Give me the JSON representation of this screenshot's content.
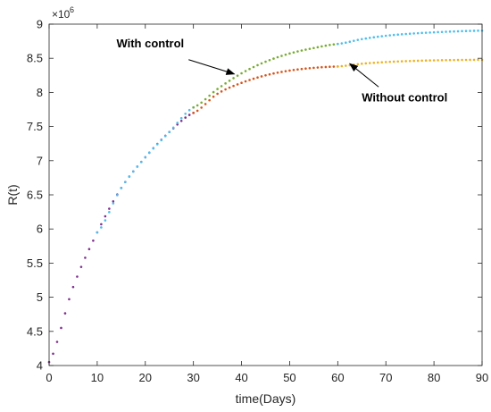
{
  "chart_data": {
    "type": "scatter",
    "xlabel": "time(Days)",
    "ylabel": "R(t)",
    "xlim": [
      0,
      90
    ],
    "ylim": [
      4000000,
      9000000
    ],
    "xticks": [
      0,
      10,
      20,
      30,
      40,
      50,
      60,
      70,
      80,
      90
    ],
    "xtick_labels": [
      "0",
      "10",
      "20",
      "30",
      "40",
      "50",
      "60",
      "70",
      "80",
      "90"
    ],
    "yticks": [
      4000000,
      4500000,
      5000000,
      5500000,
      6000000,
      6500000,
      7000000,
      7500000,
      8000000,
      8500000,
      9000000
    ],
    "ytick_labels": [
      "4",
      "4.5",
      "5",
      "5.5",
      "6",
      "6.5",
      "7",
      "7.5",
      "8",
      "8.5",
      "9"
    ],
    "y_multiplier_base": "×10",
    "y_multiplier_exp": "6",
    "grid": false,
    "series": [
      {
        "segments": [
          {
            "x": [
              0,
              5,
              10,
              15,
              20,
              25,
              30
            ],
            "y": [
              4050000,
              5150000,
              5950000,
              6600000,
              7050000,
              7420000,
              7700000
            ],
            "color": "#7E2F8E"
          },
          {
            "x": [
              10,
              15,
              20,
              25,
              30
            ],
            "y": [
              5950000,
              6600000,
              7050000,
              7420000,
              7780000
            ],
            "color": "#4DBEEE"
          },
          {
            "x": [
              30,
              35,
              40,
              45,
              50,
              55,
              60
            ],
            "y": [
              7780000,
              8050000,
              8280000,
              8450000,
              8570000,
              8650000,
              8710000
            ],
            "color": "#77AC30"
          },
          {
            "x": [
              60,
              65,
              70,
              75,
              80,
              85,
              90
            ],
            "y": [
              8710000,
              8780000,
              8830000,
              8860000,
              8880000,
              8895000,
              8905000
            ],
            "color": "#4DBEEE"
          }
        ]
      },
      {
        "segments": [
          {
            "x": [
              30,
              35,
              40,
              45,
              50,
              55,
              60
            ],
            "y": [
              7700000,
              7980000,
              8140000,
              8250000,
              8320000,
              8360000,
              8380000
            ],
            "color": "#D95319"
          },
          {
            "x": [
              60,
              65,
              70,
              75,
              80,
              85,
              90
            ],
            "y": [
              8380000,
              8420000,
              8445000,
              8460000,
              8470000,
              8475000,
              8478000
            ],
            "color": "#EDB120"
          }
        ]
      }
    ],
    "annotations": [
      {
        "text": "With control",
        "x": 14,
        "y": 8660000,
        "arrow_from": [
          29,
          8480000
        ],
        "arrow_to": [
          38.5,
          8270000
        ]
      },
      {
        "text": "Without control",
        "x": 65,
        "y": 7870000,
        "arrow_from": [
          68.5,
          8080000
        ],
        "arrow_to": [
          62.5,
          8420000
        ]
      }
    ]
  }
}
